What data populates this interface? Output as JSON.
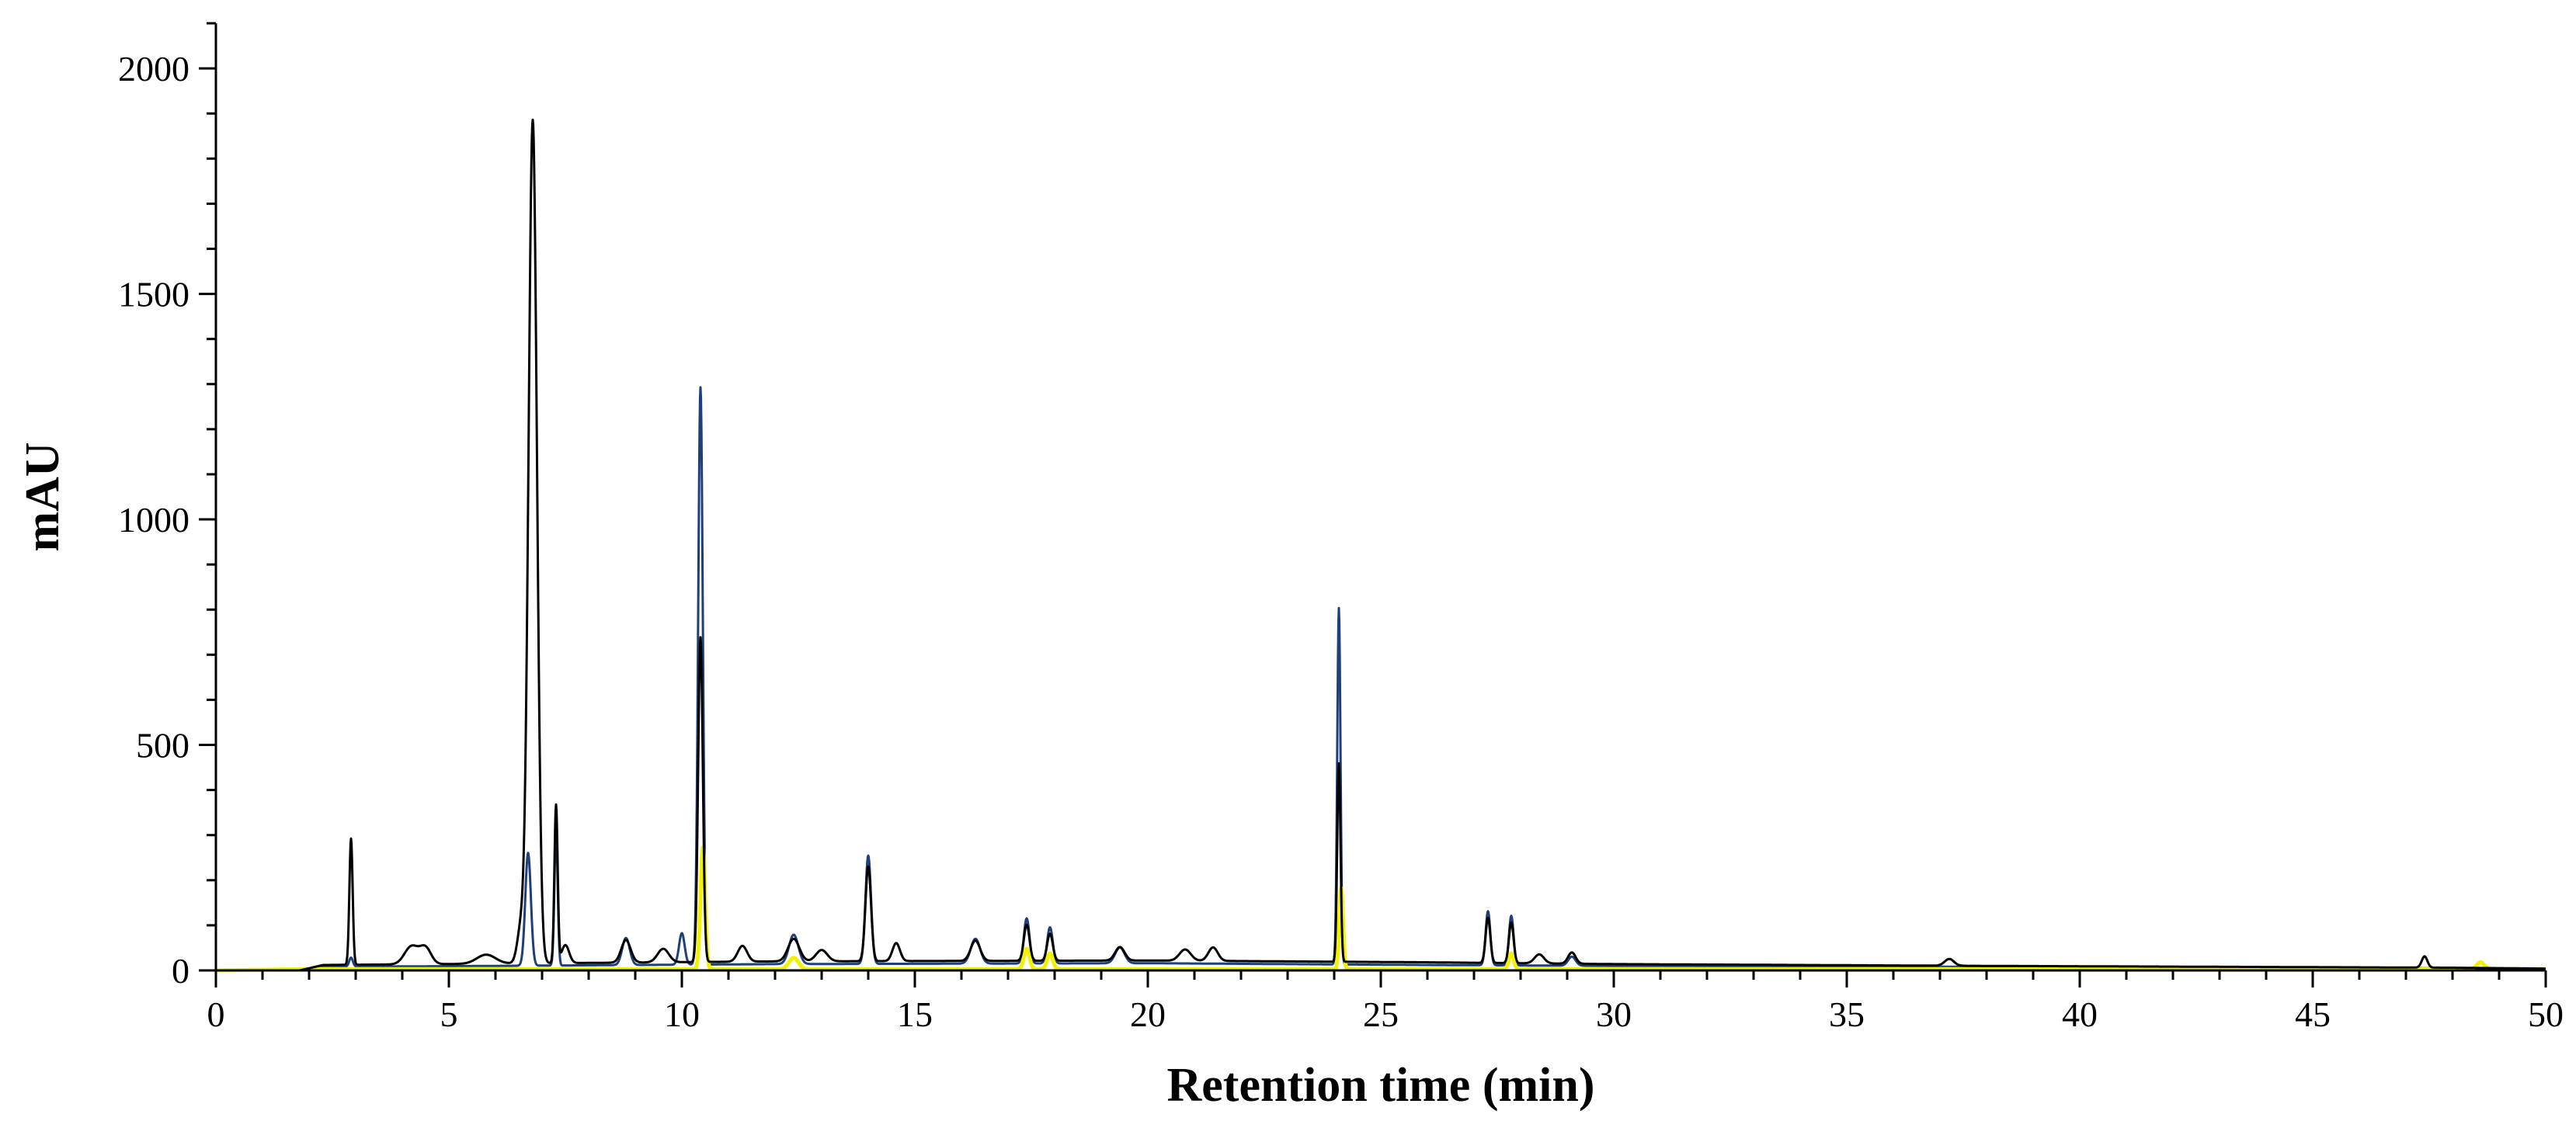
{
  "chart_data": {
    "type": "line",
    "title": "",
    "xlabel": "Retention time (min)",
    "ylabel": "mAU",
    "xlim": [
      0,
      50
    ],
    "ylim": [
      0,
      2100
    ],
    "x_ticks": [
      "0",
      "5",
      "10",
      "15",
      "20",
      "25",
      "30",
      "35",
      "40",
      "45",
      "50"
    ],
    "y_ticks": [
      "0",
      "500",
      "1000",
      "1500",
      "2000"
    ],
    "grid": false,
    "legend": "none",
    "series": [
      {
        "color": "#000000",
        "stroke": 3,
        "peaks": [
          [
            2.9,
            280,
            0.035
          ],
          [
            4.2,
            40,
            0.15
          ],
          [
            4.5,
            35,
            0.12
          ],
          [
            5.8,
            20,
            0.2
          ],
          [
            6.8,
            1870,
            0.09
          ],
          [
            6.55,
            80,
            0.08
          ],
          [
            7.3,
            350,
            0.035
          ],
          [
            7.5,
            40,
            0.08
          ],
          [
            8.8,
            50,
            0.1
          ],
          [
            9.6,
            30,
            0.12
          ],
          [
            10.4,
            720,
            0.05
          ],
          [
            11.3,
            35,
            0.1
          ],
          [
            12.4,
            50,
            0.12
          ],
          [
            13.0,
            25,
            0.12
          ],
          [
            14.0,
            210,
            0.06
          ],
          [
            14.6,
            40,
            0.08
          ],
          [
            16.3,
            45,
            0.1
          ],
          [
            17.4,
            80,
            0.06
          ],
          [
            17.9,
            60,
            0.06
          ],
          [
            19.4,
            30,
            0.1
          ],
          [
            20.8,
            25,
            0.12
          ],
          [
            21.4,
            30,
            0.1
          ],
          [
            24.1,
            440,
            0.035
          ],
          [
            27.3,
            100,
            0.05
          ],
          [
            27.8,
            90,
            0.05
          ],
          [
            28.4,
            20,
            0.1
          ],
          [
            29.1,
            25,
            0.08
          ],
          [
            37.2,
            15,
            0.1
          ],
          [
            47.4,
            25,
            0.06
          ]
        ],
        "baseline": [
          [
            0,
            0
          ],
          [
            1.8,
            0
          ],
          [
            2.3,
            12
          ],
          [
            6,
            15
          ],
          [
            12,
            20
          ],
          [
            20,
            22
          ],
          [
            26,
            18
          ],
          [
            30,
            14
          ],
          [
            38,
            10
          ],
          [
            48,
            6
          ],
          [
            50,
            4
          ]
        ]
      },
      {
        "color": "#1f3f7a",
        "stroke": 3,
        "peaks": [
          [
            2.9,
            20,
            0.04
          ],
          [
            6.7,
            250,
            0.06
          ],
          [
            7.3,
            300,
            0.035
          ],
          [
            8.8,
            60,
            0.08
          ],
          [
            10.0,
            70,
            0.06
          ],
          [
            10.4,
            1280,
            0.05
          ],
          [
            12.4,
            65,
            0.1
          ],
          [
            14.0,
            240,
            0.06
          ],
          [
            16.3,
            55,
            0.1
          ],
          [
            17.4,
            100,
            0.06
          ],
          [
            17.9,
            80,
            0.06
          ],
          [
            19.4,
            35,
            0.1
          ],
          [
            24.1,
            790,
            0.035
          ],
          [
            27.3,
            120,
            0.05
          ],
          [
            27.8,
            110,
            0.05
          ],
          [
            29.1,
            20,
            0.08
          ]
        ],
        "baseline": [
          [
            0,
            0
          ],
          [
            1.8,
            0
          ],
          [
            2.3,
            8
          ],
          [
            6,
            10
          ],
          [
            12,
            14
          ],
          [
            20,
            16
          ],
          [
            26,
            12
          ],
          [
            30,
            10
          ],
          [
            38,
            8
          ],
          [
            48,
            5
          ],
          [
            50,
            4
          ]
        ]
      },
      {
        "color": "#f2f200",
        "stroke": 5,
        "peaks": [
          [
            10.45,
            270,
            0.05
          ],
          [
            12.4,
            25,
            0.1
          ],
          [
            17.4,
            45,
            0.06
          ],
          [
            17.9,
            35,
            0.06
          ],
          [
            24.15,
            180,
            0.04
          ],
          [
            27.8,
            35,
            0.05
          ],
          [
            48.6,
            15,
            0.08
          ]
        ],
        "baseline": [
          [
            0,
            0
          ],
          [
            2,
            3
          ],
          [
            50,
            3
          ]
        ]
      },
      {
        "color": "#e0201a",
        "stroke": 3,
        "peaks": [],
        "baseline": [
          [
            0,
            0
          ],
          [
            50,
            0
          ]
        ]
      }
    ]
  }
}
